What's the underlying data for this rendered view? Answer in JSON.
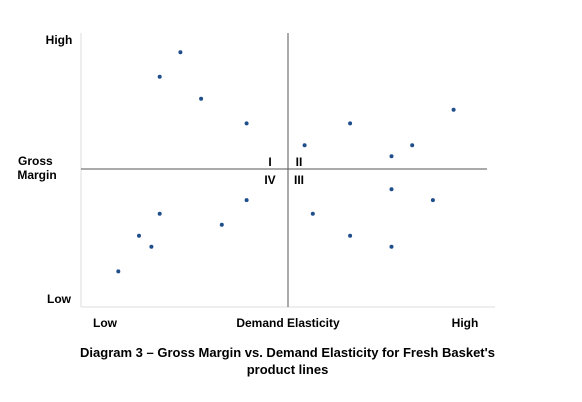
{
  "chart_data": {
    "type": "scatter",
    "title": "Diagram 3 – Gross Margin vs. Demand Elasticity for Fresh Basket's product lines",
    "xlabel": "Demand Elasticity",
    "ylabel": "Gross Margin",
    "x_low_label": "Low",
    "x_high_label": "High",
    "y_low_label": "Low",
    "y_high_label": "High",
    "quadrants": [
      "I",
      "II",
      "III",
      "IV"
    ],
    "xlim": [
      0,
      100
    ],
    "ylim": [
      0,
      100
    ],
    "divider": {
      "x": 50,
      "y": 50
    },
    "grid": false,
    "marker_color": "#1f4e8c",
    "points": [
      {
        "x": 24,
        "y": 93
      },
      {
        "x": 19,
        "y": 84
      },
      {
        "x": 29,
        "y": 76
      },
      {
        "x": 40,
        "y": 67
      },
      {
        "x": 54,
        "y": 59
      },
      {
        "x": 65,
        "y": 67
      },
      {
        "x": 75,
        "y": 55
      },
      {
        "x": 80,
        "y": 59
      },
      {
        "x": 90,
        "y": 72
      },
      {
        "x": 75,
        "y": 43
      },
      {
        "x": 85,
        "y": 39
      },
      {
        "x": 56,
        "y": 34
      },
      {
        "x": 65,
        "y": 26
      },
      {
        "x": 75,
        "y": 22
      },
      {
        "x": 40,
        "y": 39
      },
      {
        "x": 34,
        "y": 30
      },
      {
        "x": 19,
        "y": 34
      },
      {
        "x": 14,
        "y": 26
      },
      {
        "x": 17,
        "y": 22
      },
      {
        "x": 9,
        "y": 13
      }
    ]
  }
}
